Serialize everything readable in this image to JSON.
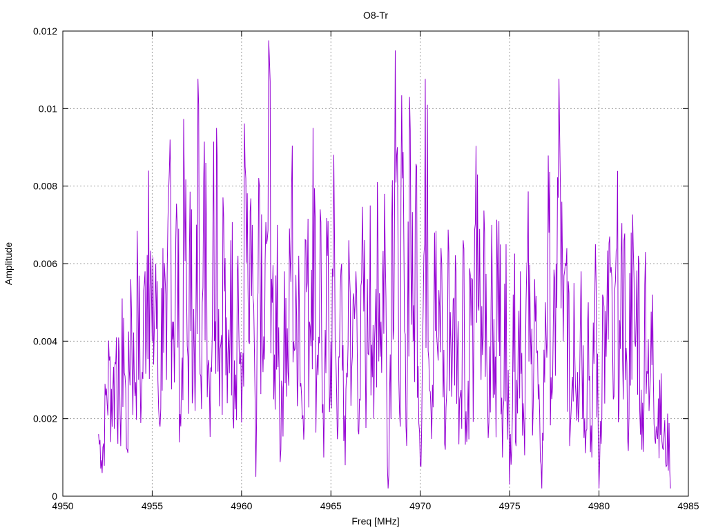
{
  "chart_data": {
    "type": "line",
    "title": "O8-Tr",
    "xlabel": "Freq [MHz]",
    "ylabel": "Amplitude",
    "xlim": [
      4950,
      4985
    ],
    "ylim": [
      0,
      0.012
    ],
    "xticks": [
      4950,
      4955,
      4960,
      4965,
      4970,
      4975,
      4980,
      4985
    ],
    "xtick_labels": [
      "4950",
      "4955",
      "4960",
      "4965",
      "4970",
      "4975",
      "4980",
      "4985"
    ],
    "yticks": [
      0,
      0.002,
      0.004,
      0.006,
      0.008,
      0.01,
      0.012
    ],
    "ytick_labels": [
      "0",
      "0.002",
      "0.004",
      "0.006",
      "0.008",
      "0.01",
      "0.012"
    ],
    "grid": true,
    "line_color": "#9400d3",
    "x_range": [
      4952.0,
      4984.0
    ],
    "series": [
      {
        "values": [
          [
            4952.0,
            0.0016
          ],
          [
            4952.2,
            0.0006
          ],
          [
            4952.4,
            0.0026
          ],
          [
            4952.6,
            0.0035
          ],
          [
            4952.8,
            0.0028
          ],
          [
            4953.0,
            0.0041
          ],
          [
            4953.2,
            0.0022
          ],
          [
            4953.4,
            0.0046
          ],
          [
            4953.6,
            0.0012
          ],
          [
            4953.8,
            0.0056
          ],
          [
            4954.0,
            0.003
          ],
          [
            4954.2,
            0.0055
          ],
          [
            4954.4,
            0.0025
          ],
          [
            4954.6,
            0.0058
          ],
          [
            4954.8,
            0.0084
          ],
          [
            4955.0,
            0.004
          ],
          [
            4955.2,
            0.006
          ],
          [
            4955.4,
            0.0019
          ],
          [
            4955.6,
            0.0064
          ],
          [
            4955.8,
            0.003
          ],
          [
            4956.0,
            0.0092
          ],
          [
            4956.2,
            0.0045
          ],
          [
            4956.4,
            0.007
          ],
          [
            4956.6,
            0.0018
          ],
          [
            4956.8,
            0.008
          ],
          [
            4957.0,
            0.0036
          ],
          [
            4957.2,
            0.0074
          ],
          [
            4957.4,
            0.0022
          ],
          [
            4957.6,
            0.0101
          ],
          [
            4957.8,
            0.005
          ],
          [
            4958.0,
            0.0086
          ],
          [
            4958.2,
            0.0028
          ],
          [
            4958.4,
            0.007
          ],
          [
            4958.6,
            0.0095
          ],
          [
            4958.8,
            0.0038
          ],
          [
            4959.0,
            0.0072
          ],
          [
            4959.2,
            0.0024
          ],
          [
            4959.4,
            0.0066
          ],
          [
            4959.6,
            0.0035
          ],
          [
            4959.8,
            0.0062
          ],
          [
            4960.0,
            0.0019
          ],
          [
            4960.2,
            0.0085
          ],
          [
            4960.4,
            0.004
          ],
          [
            4960.6,
            0.007
          ],
          [
            4960.8,
            0.0005
          ],
          [
            4961.0,
            0.008
          ],
          [
            4961.2,
            0.0032
          ],
          [
            4961.4,
            0.0065
          ],
          [
            4961.6,
            0.0107
          ],
          [
            4961.8,
            0.0025
          ],
          [
            4962.0,
            0.007
          ],
          [
            4962.2,
            0.0012
          ],
          [
            4962.4,
            0.0058
          ],
          [
            4962.6,
            0.0032
          ],
          [
            4962.8,
            0.008
          ],
          [
            4963.0,
            0.0038
          ],
          [
            4963.2,
            0.0062
          ],
          [
            4963.4,
            0.002
          ],
          [
            4963.6,
            0.0066
          ],
          [
            4963.8,
            0.0045
          ],
          [
            4964.0,
            0.0095
          ],
          [
            4964.2,
            0.003
          ],
          [
            4964.4,
            0.0074
          ],
          [
            4964.6,
            0.001
          ],
          [
            4964.8,
            0.0062
          ],
          [
            4965.0,
            0.004
          ],
          [
            4965.2,
            0.0068
          ],
          [
            4965.4,
            0.0018
          ],
          [
            4965.6,
            0.006
          ],
          [
            4965.8,
            0.0008
          ],
          [
            4966.0,
            0.0066
          ],
          [
            4966.2,
            0.0036
          ],
          [
            4966.4,
            0.0058
          ],
          [
            4966.6,
            0.0025
          ],
          [
            4966.8,
            0.0062
          ],
          [
            4967.0,
            0.0034
          ],
          [
            4967.2,
            0.0075
          ],
          [
            4967.4,
            0.002
          ],
          [
            4967.6,
            0.0081
          ],
          [
            4967.8,
            0.0045
          ],
          [
            4968.0,
            0.0078
          ],
          [
            4968.2,
            0.0002
          ],
          [
            4968.4,
            0.007
          ],
          [
            4968.6,
            0.0115
          ],
          [
            4968.8,
            0.003
          ],
          [
            4969.0,
            0.0082
          ],
          [
            4969.2,
            0.0018
          ],
          [
            4969.4,
            0.0103
          ],
          [
            4969.6,
            0.004
          ],
          [
            4969.8,
            0.0085
          ],
          [
            4970.0,
            0.0008
          ],
          [
            4970.2,
            0.0062
          ],
          [
            4970.4,
            0.0101
          ],
          [
            4970.6,
            0.0022
          ],
          [
            4970.8,
            0.0068
          ],
          [
            4971.0,
            0.0035
          ],
          [
            4971.2,
            0.006
          ],
          [
            4971.4,
            0.0012
          ],
          [
            4971.6,
            0.0063
          ],
          [
            4971.8,
            0.0038
          ],
          [
            4972.0,
            0.0058
          ],
          [
            4972.2,
            0.0025
          ],
          [
            4972.4,
            0.0066
          ],
          [
            4972.6,
            0.0014
          ],
          [
            4972.8,
            0.0057
          ],
          [
            4973.0,
            0.004
          ],
          [
            4973.2,
            0.0083
          ],
          [
            4973.4,
            0.003
          ],
          [
            4973.6,
            0.0068
          ],
          [
            4973.8,
            0.0015
          ],
          [
            4974.0,
            0.007
          ],
          [
            4974.2,
            0.0036
          ],
          [
            4974.4,
            0.0071
          ],
          [
            4974.6,
            0.001
          ],
          [
            4974.8,
            0.0065
          ],
          [
            4975.0,
            0.0003
          ],
          [
            4975.2,
            0.0052
          ],
          [
            4975.4,
            0.003
          ],
          [
            4975.6,
            0.0058
          ],
          [
            4975.8,
            0.0019
          ],
          [
            4976.0,
            0.0062
          ],
          [
            4976.2,
            0.0034
          ],
          [
            4976.4,
            0.0056
          ],
          [
            4976.6,
            0.0025
          ],
          [
            4976.8,
            0.0002
          ],
          [
            4977.0,
            0.005
          ],
          [
            4977.2,
            0.0068
          ],
          [
            4977.4,
            0.0028
          ],
          [
            4977.6,
            0.006
          ],
          [
            4977.8,
            0.0093
          ],
          [
            4978.0,
            0.004
          ],
          [
            4978.2,
            0.0064
          ],
          [
            4978.4,
            0.0018
          ],
          [
            4978.6,
            0.0055
          ],
          [
            4978.8,
            0.0032
          ],
          [
            4979.0,
            0.0058
          ],
          [
            4979.2,
            0.002
          ],
          [
            4979.4,
            0.005
          ],
          [
            4979.6,
            0.001
          ],
          [
            4979.8,
            0.0065
          ],
          [
            4980.0,
            0.0002
          ],
          [
            4980.2,
            0.0052
          ],
          [
            4980.4,
            0.0036
          ],
          [
            4980.6,
            0.0067
          ],
          [
            4980.8,
            0.0025
          ],
          [
            4981.0,
            0.0064
          ],
          [
            4981.2,
            0.0038
          ],
          [
            4981.4,
            0.0066
          ],
          [
            4981.6,
            0.0015
          ],
          [
            4981.8,
            0.0068
          ],
          [
            4982.0,
            0.004
          ],
          [
            4982.2,
            0.0062
          ],
          [
            4982.4,
            0.0012
          ],
          [
            4982.6,
            0.0063
          ],
          [
            4982.8,
            0.0022
          ],
          [
            4983.0,
            0.0052
          ],
          [
            4983.2,
            0.0018
          ],
          [
            4983.4,
            0.003
          ],
          [
            4983.6,
            0.0012
          ],
          [
            4983.8,
            0.0008
          ],
          [
            4984.0,
            0.0002
          ]
        ]
      }
    ]
  }
}
